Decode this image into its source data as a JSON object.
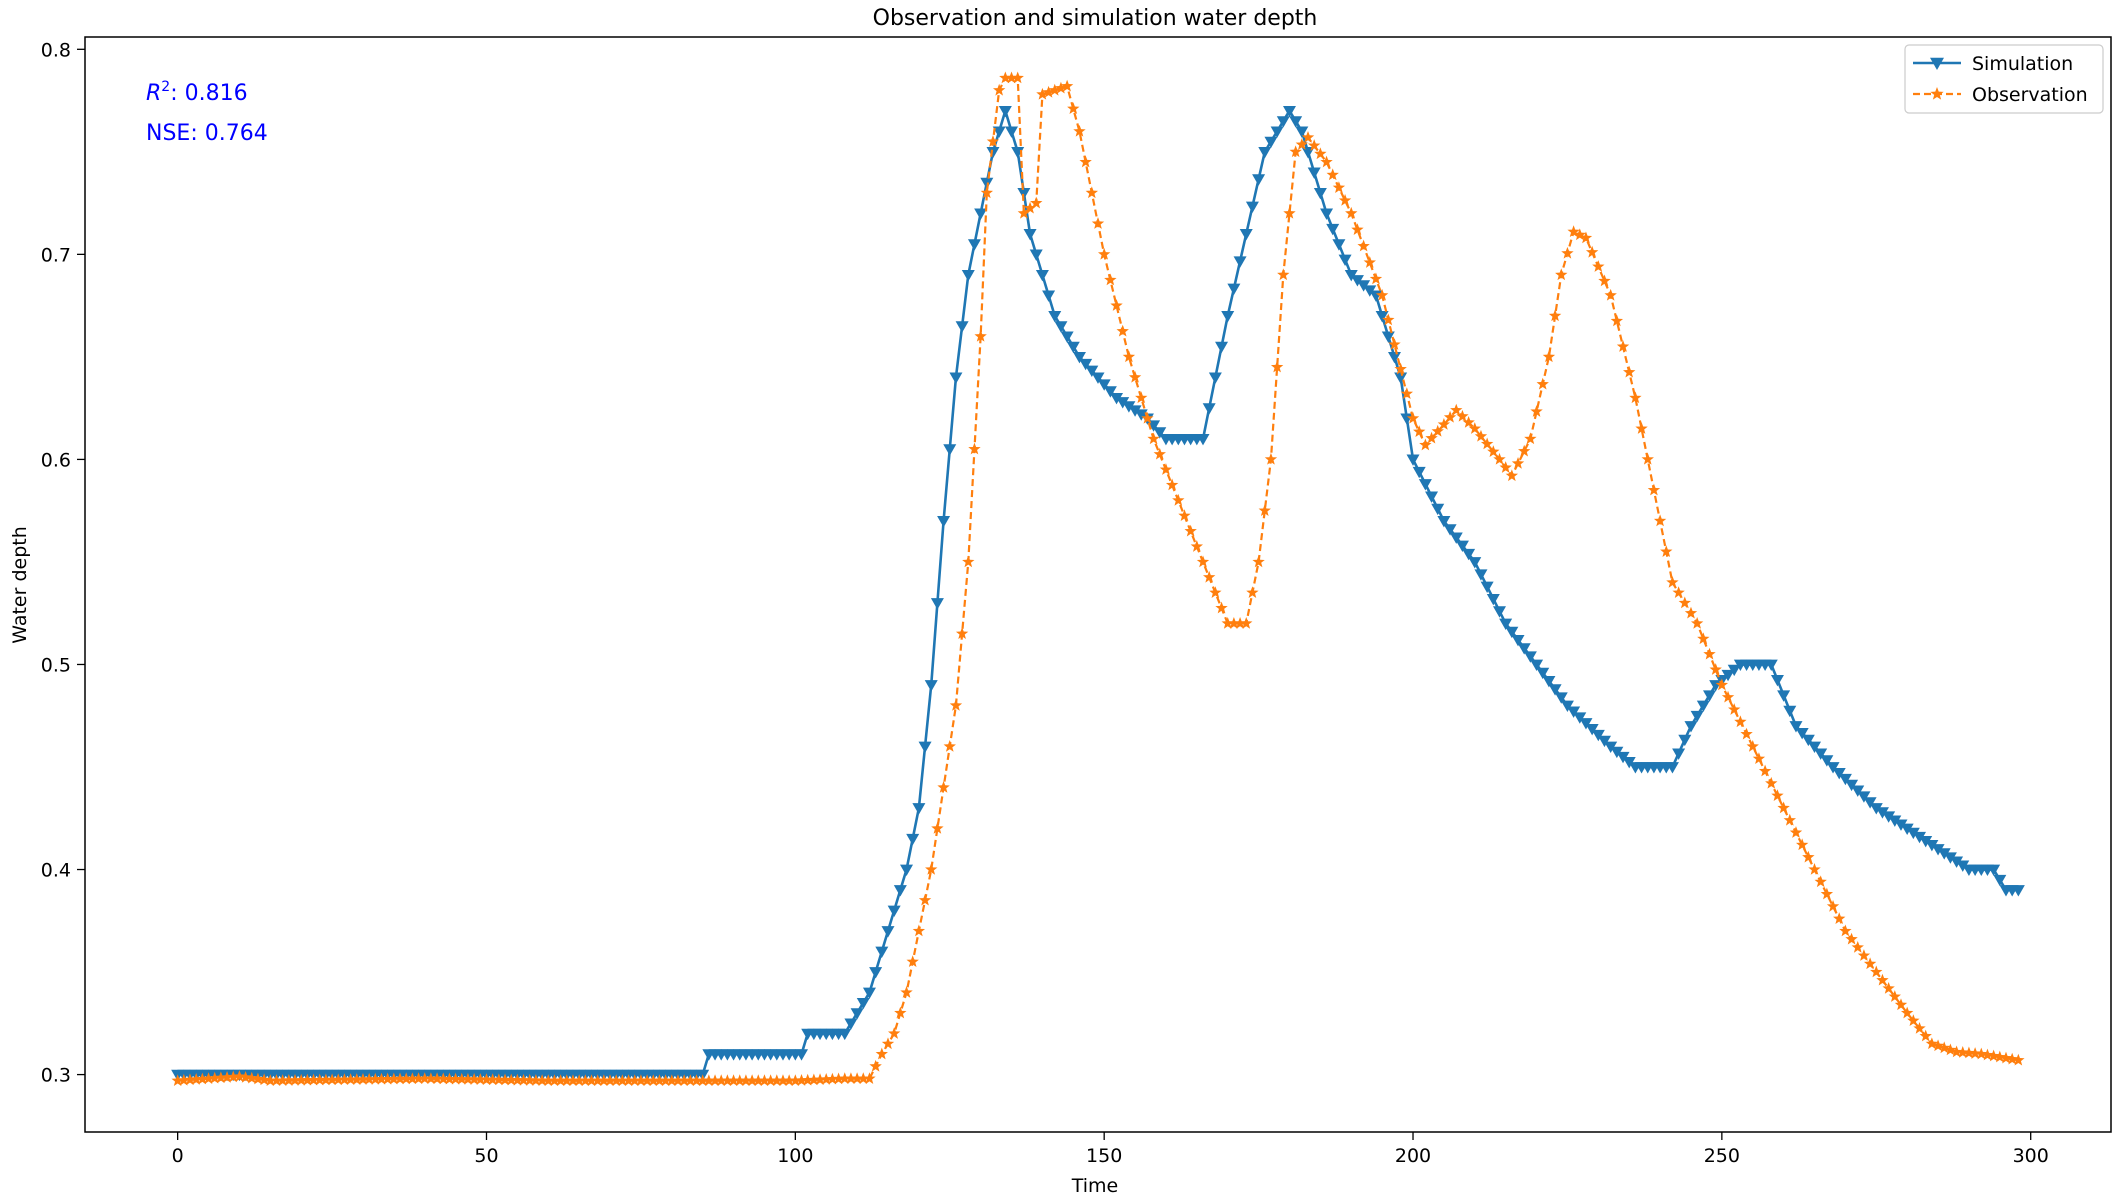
{
  "chart_data": {
    "type": "line",
    "title": "Observation and simulation water depth",
    "xlabel": "Time",
    "ylabel": "Water depth",
    "xlim": [
      -15,
      313
    ],
    "ylim": [
      0.272,
      0.806
    ],
    "xticks": [
      0,
      50,
      100,
      150,
      200,
      250,
      300
    ],
    "yticks": [
      0.3,
      0.4,
      0.5,
      0.6,
      0.7,
      0.8
    ],
    "grid": false,
    "legend": "top-right",
    "annotations": {
      "r2_symbol": "R",
      "r2_sup": "2",
      "r2_value": ": 0.816",
      "nse": "NSE: 0.764",
      "color": "#0000ff"
    },
    "series": [
      {
        "name": "Simulation",
        "color": "#1f77b4",
        "marker": "triangle-down",
        "linestyle": "solid",
        "keypoints": [
          [
            0,
            0.3
          ],
          [
            85,
            0.3
          ],
          [
            86,
            0.31
          ],
          [
            101,
            0.31
          ],
          [
            102,
            0.32
          ],
          [
            108,
            0.32
          ],
          [
            110,
            0.33
          ],
          [
            112,
            0.34
          ],
          [
            114,
            0.36
          ],
          [
            116,
            0.38
          ],
          [
            118,
            0.4
          ],
          [
            120,
            0.43
          ],
          [
            122,
            0.49
          ],
          [
            124,
            0.57
          ],
          [
            126,
            0.64
          ],
          [
            128,
            0.69
          ],
          [
            130,
            0.72
          ],
          [
            132,
            0.75
          ],
          [
            134,
            0.77
          ],
          [
            136,
            0.75
          ],
          [
            138,
            0.71
          ],
          [
            142,
            0.67
          ],
          [
            146,
            0.65
          ],
          [
            152,
            0.63
          ],
          [
            157,
            0.62
          ],
          [
            160,
            0.61
          ],
          [
            166,
            0.61
          ],
          [
            170,
            0.67
          ],
          [
            173,
            0.71
          ],
          [
            176,
            0.75
          ],
          [
            180,
            0.77
          ],
          [
            182,
            0.76
          ],
          [
            186,
            0.72
          ],
          [
            190,
            0.69
          ],
          [
            194,
            0.68
          ],
          [
            198,
            0.64
          ],
          [
            200,
            0.6
          ],
          [
            205,
            0.57
          ],
          [
            210,
            0.55
          ],
          [
            215,
            0.52
          ],
          [
            220,
            0.5
          ],
          [
            225,
            0.48
          ],
          [
            232,
            0.46
          ],
          [
            236,
            0.45
          ],
          [
            242,
            0.45
          ],
          [
            245,
            0.47
          ],
          [
            249,
            0.49
          ],
          [
            253,
            0.5
          ],
          [
            258,
            0.5
          ],
          [
            262,
            0.47
          ],
          [
            268,
            0.45
          ],
          [
            275,
            0.43
          ],
          [
            280,
            0.42
          ],
          [
            285,
            0.41
          ],
          [
            290,
            0.4
          ],
          [
            294,
            0.4
          ],
          [
            296,
            0.39
          ],
          [
            298,
            0.39
          ]
        ]
      },
      {
        "name": "Observation",
        "color": "#ff7f0e",
        "marker": "star",
        "linestyle": "dashed",
        "keypoints": [
          [
            0,
            0.297
          ],
          [
            10,
            0.299
          ],
          [
            15,
            0.297
          ],
          [
            40,
            0.298
          ],
          [
            60,
            0.297
          ],
          [
            85,
            0.297
          ],
          [
            100,
            0.297
          ],
          [
            108,
            0.298
          ],
          [
            112,
            0.298
          ],
          [
            114,
            0.31
          ],
          [
            116,
            0.32
          ],
          [
            118,
            0.34
          ],
          [
            120,
            0.37
          ],
          [
            122,
            0.4
          ],
          [
            124,
            0.44
          ],
          [
            126,
            0.48
          ],
          [
            128,
            0.55
          ],
          [
            130,
            0.66
          ],
          [
            131,
            0.73
          ],
          [
            133,
            0.78
          ],
          [
            134,
            0.786
          ],
          [
            136,
            0.786
          ],
          [
            137,
            0.72
          ],
          [
            139,
            0.725
          ],
          [
            140,
            0.778
          ],
          [
            144,
            0.782
          ],
          [
            146,
            0.76
          ],
          [
            150,
            0.7
          ],
          [
            154,
            0.65
          ],
          [
            158,
            0.61
          ],
          [
            162,
            0.58
          ],
          [
            166,
            0.55
          ],
          [
            170,
            0.52
          ],
          [
            173,
            0.52
          ],
          [
            175,
            0.55
          ],
          [
            177,
            0.6
          ],
          [
            179,
            0.69
          ],
          [
            181,
            0.75
          ],
          [
            183,
            0.757
          ],
          [
            186,
            0.745
          ],
          [
            190,
            0.72
          ],
          [
            195,
            0.68
          ],
          [
            200,
            0.62
          ],
          [
            202,
            0.607
          ],
          [
            205,
            0.617
          ],
          [
            207,
            0.624
          ],
          [
            210,
            0.615
          ],
          [
            214,
            0.6
          ],
          [
            216,
            0.592
          ],
          [
            219,
            0.61
          ],
          [
            222,
            0.65
          ],
          [
            224,
            0.69
          ],
          [
            226,
            0.711
          ],
          [
            228,
            0.708
          ],
          [
            232,
            0.68
          ],
          [
            236,
            0.63
          ],
          [
            240,
            0.57
          ],
          [
            242,
            0.54
          ],
          [
            246,
            0.52
          ],
          [
            250,
            0.49
          ],
          [
            255,
            0.46
          ],
          [
            260,
            0.43
          ],
          [
            265,
            0.4
          ],
          [
            270,
            0.37
          ],
          [
            275,
            0.35
          ],
          [
            280,
            0.33
          ],
          [
            284,
            0.315
          ],
          [
            288,
            0.311
          ],
          [
            292,
            0.31
          ],
          [
            296,
            0.308
          ],
          [
            298,
            0.307
          ]
        ]
      }
    ]
  }
}
